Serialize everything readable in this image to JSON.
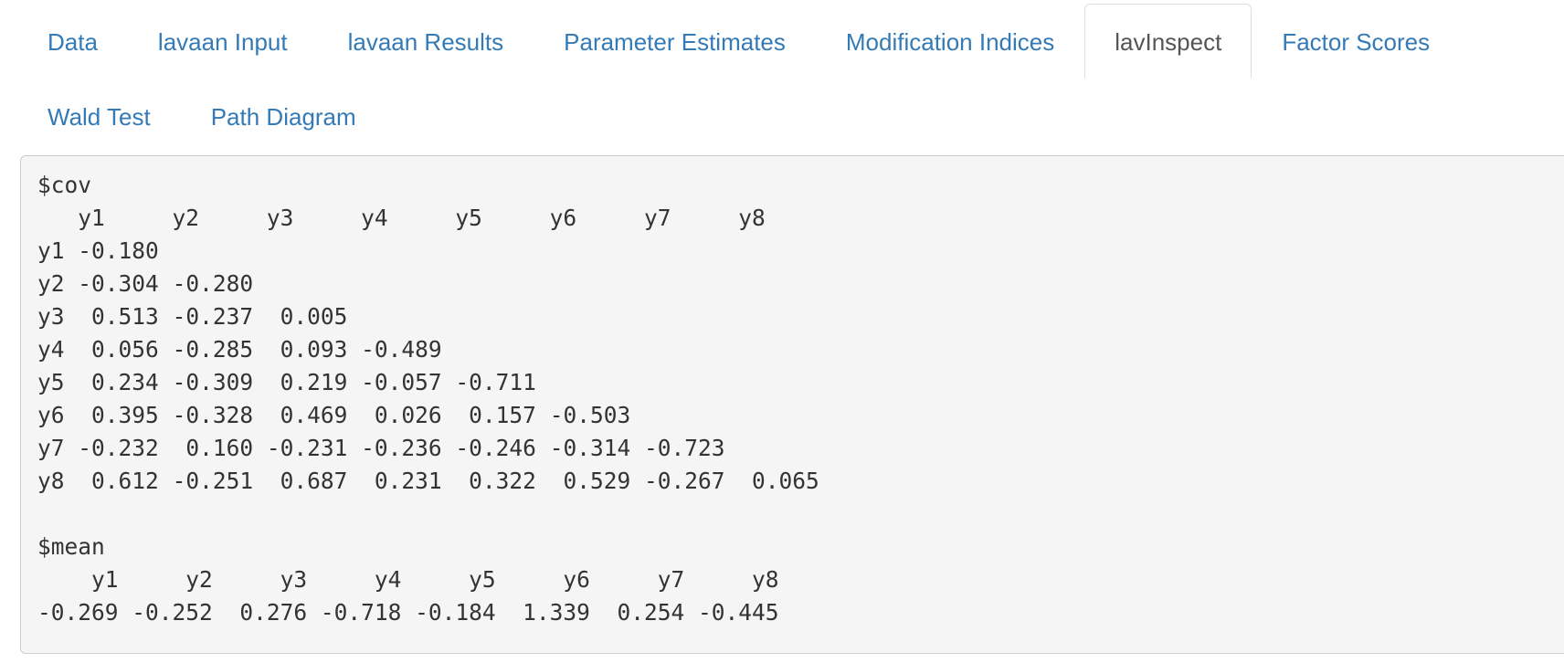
{
  "tabs": [
    {
      "label": "Data",
      "active": false
    },
    {
      "label": "lavaan Input",
      "active": false
    },
    {
      "label": "lavaan Results",
      "active": false
    },
    {
      "label": "Parameter Estimates",
      "active": false
    },
    {
      "label": "Modification Indices",
      "active": false
    },
    {
      "label": "lavInspect",
      "active": true
    },
    {
      "label": "Factor Scores",
      "active": false
    },
    {
      "label": "Wald Test",
      "active": false
    },
    {
      "label": "Path Diagram",
      "active": false
    }
  ],
  "output": {
    "cov": {
      "name": "$cov",
      "columns": [
        "y1",
        "y2",
        "y3",
        "y4",
        "y5",
        "y6",
        "y7",
        "y8"
      ],
      "rows": [
        {
          "label": "y1",
          "values": [
            "-0.180"
          ]
        },
        {
          "label": "y2",
          "values": [
            "-0.304",
            "-0.280"
          ]
        },
        {
          "label": "y3",
          "values": [
            "0.513",
            "-0.237",
            "0.005"
          ]
        },
        {
          "label": "y4",
          "values": [
            "0.056",
            "-0.285",
            "0.093",
            "-0.489"
          ]
        },
        {
          "label": "y5",
          "values": [
            "0.234",
            "-0.309",
            "0.219",
            "-0.057",
            "-0.711"
          ]
        },
        {
          "label": "y6",
          "values": [
            "0.395",
            "-0.328",
            "0.469",
            "0.026",
            "0.157",
            "-0.503"
          ]
        },
        {
          "label": "y7",
          "values": [
            "-0.232",
            "0.160",
            "-0.231",
            "-0.236",
            "-0.246",
            "-0.314",
            "-0.723"
          ]
        },
        {
          "label": "y8",
          "values": [
            "0.612",
            "-0.251",
            "0.687",
            "0.231",
            "0.322",
            "0.529",
            "-0.267",
            "0.065"
          ]
        }
      ]
    },
    "mean": {
      "name": "$mean",
      "columns": [
        "y1",
        "y2",
        "y3",
        "y4",
        "y5",
        "y6",
        "y7",
        "y8"
      ],
      "values": [
        "-0.269",
        "-0.252",
        "0.276",
        "-0.718",
        "-0.184",
        "1.339",
        "0.254",
        "-0.445"
      ]
    }
  }
}
